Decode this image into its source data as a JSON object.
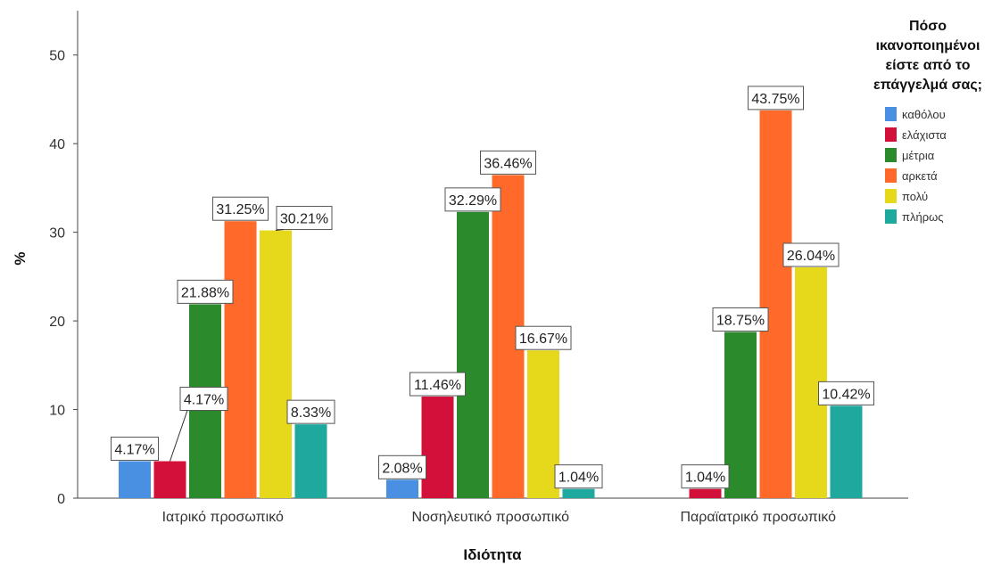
{
  "chart_data": {
    "type": "bar",
    "xlabel": "Ιδιότητα",
    "ylabel": "%",
    "ylim": [
      0,
      55
    ],
    "yticks": [
      0,
      10,
      20,
      30,
      40,
      50
    ],
    "categories": [
      "Ιατρικό προσωπικό",
      "Νοσηλευτικό προσωπικό",
      "Παραϊατρικό προσωπικό"
    ],
    "legend_title": [
      "Πόσο",
      "ικανοποιημένοι",
      "είστε από το",
      "επάγγελμά σας;"
    ],
    "legend_position": "right",
    "grid": false,
    "series": [
      {
        "name": "καθόλου",
        "color": "#4a90e2",
        "values": [
          4.17,
          2.08,
          0
        ],
        "labels": [
          "4.17%",
          "2.08%",
          ""
        ]
      },
      {
        "name": "ελάχιστα",
        "color": "#d2103a",
        "values": [
          4.17,
          11.46,
          1.04
        ],
        "labels": [
          "4.17%",
          "11.46%",
          "1.04%"
        ]
      },
      {
        "name": "μέτρια",
        "color": "#2b8a2b",
        "values": [
          21.88,
          32.29,
          18.75
        ],
        "labels": [
          "21.88%",
          "32.29%",
          "18.75%"
        ]
      },
      {
        "name": "αρκετά",
        "color": "#ff6a2a",
        "values": [
          31.25,
          36.46,
          43.75
        ],
        "labels": [
          "31.25%",
          "36.46%",
          "43.75%"
        ]
      },
      {
        "name": "πολύ",
        "color": "#e6d81a",
        "values": [
          30.21,
          16.67,
          26.04
        ],
        "labels": [
          "30.21%",
          "16.67%",
          "26.04%"
        ]
      },
      {
        "name": "πλήρως",
        "color": "#1fa89e",
        "values": [
          8.33,
          1.04,
          10.42
        ],
        "labels": [
          "8.33%",
          "1.04%",
          "10.42%"
        ]
      }
    ]
  }
}
